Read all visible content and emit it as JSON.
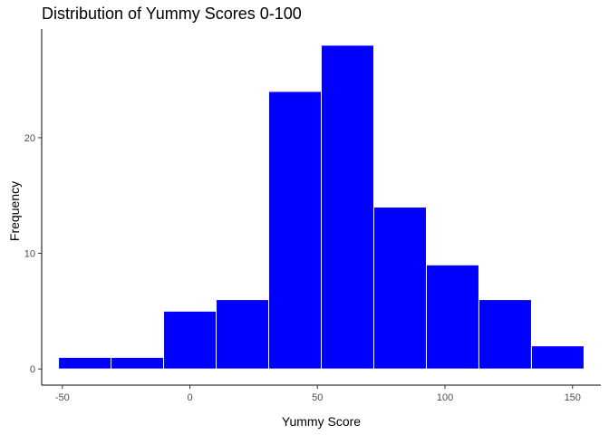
{
  "chart_data": {
    "type": "bar",
    "title": "Distribution of Yummy Scores 0-100",
    "xlabel": "Yummy Score",
    "ylabel": "Frequency",
    "bin_width": 20.6,
    "bins": [
      {
        "start": -51.5,
        "end": -30.9,
        "count": 1
      },
      {
        "start": -30.9,
        "end": -10.3,
        "count": 1
      },
      {
        "start": -10.3,
        "end": 10.3,
        "count": 5
      },
      {
        "start": 10.3,
        "end": 30.9,
        "count": 6
      },
      {
        "start": 30.9,
        "end": 51.5,
        "count": 24
      },
      {
        "start": 51.5,
        "end": 72.1,
        "count": 28
      },
      {
        "start": 72.1,
        "end": 92.7,
        "count": 14
      },
      {
        "start": 92.7,
        "end": 113.3,
        "count": 9
      },
      {
        "start": 113.3,
        "end": 133.9,
        "count": 6
      },
      {
        "start": 133.9,
        "end": 154.5,
        "count": 2
      }
    ],
    "x_ticks": [
      -50,
      0,
      50,
      100,
      150
    ],
    "y_ticks": [
      0,
      10,
      20
    ],
    "x_tick_labels": [
      "-50",
      "0",
      "50",
      "100",
      "150"
    ],
    "y_tick_labels": [
      "0",
      "10",
      "20"
    ],
    "xlim": [
      -58.1,
      161.1
    ],
    "ylim": [
      -1.4,
      29.4
    ],
    "grid": false,
    "legend": "none",
    "colors": {
      "bar_fill": "#0000ff",
      "bar_border": "#ffffff",
      "axis": "#000000",
      "tick_text": "#4d4d4d",
      "text": "#000000"
    }
  }
}
